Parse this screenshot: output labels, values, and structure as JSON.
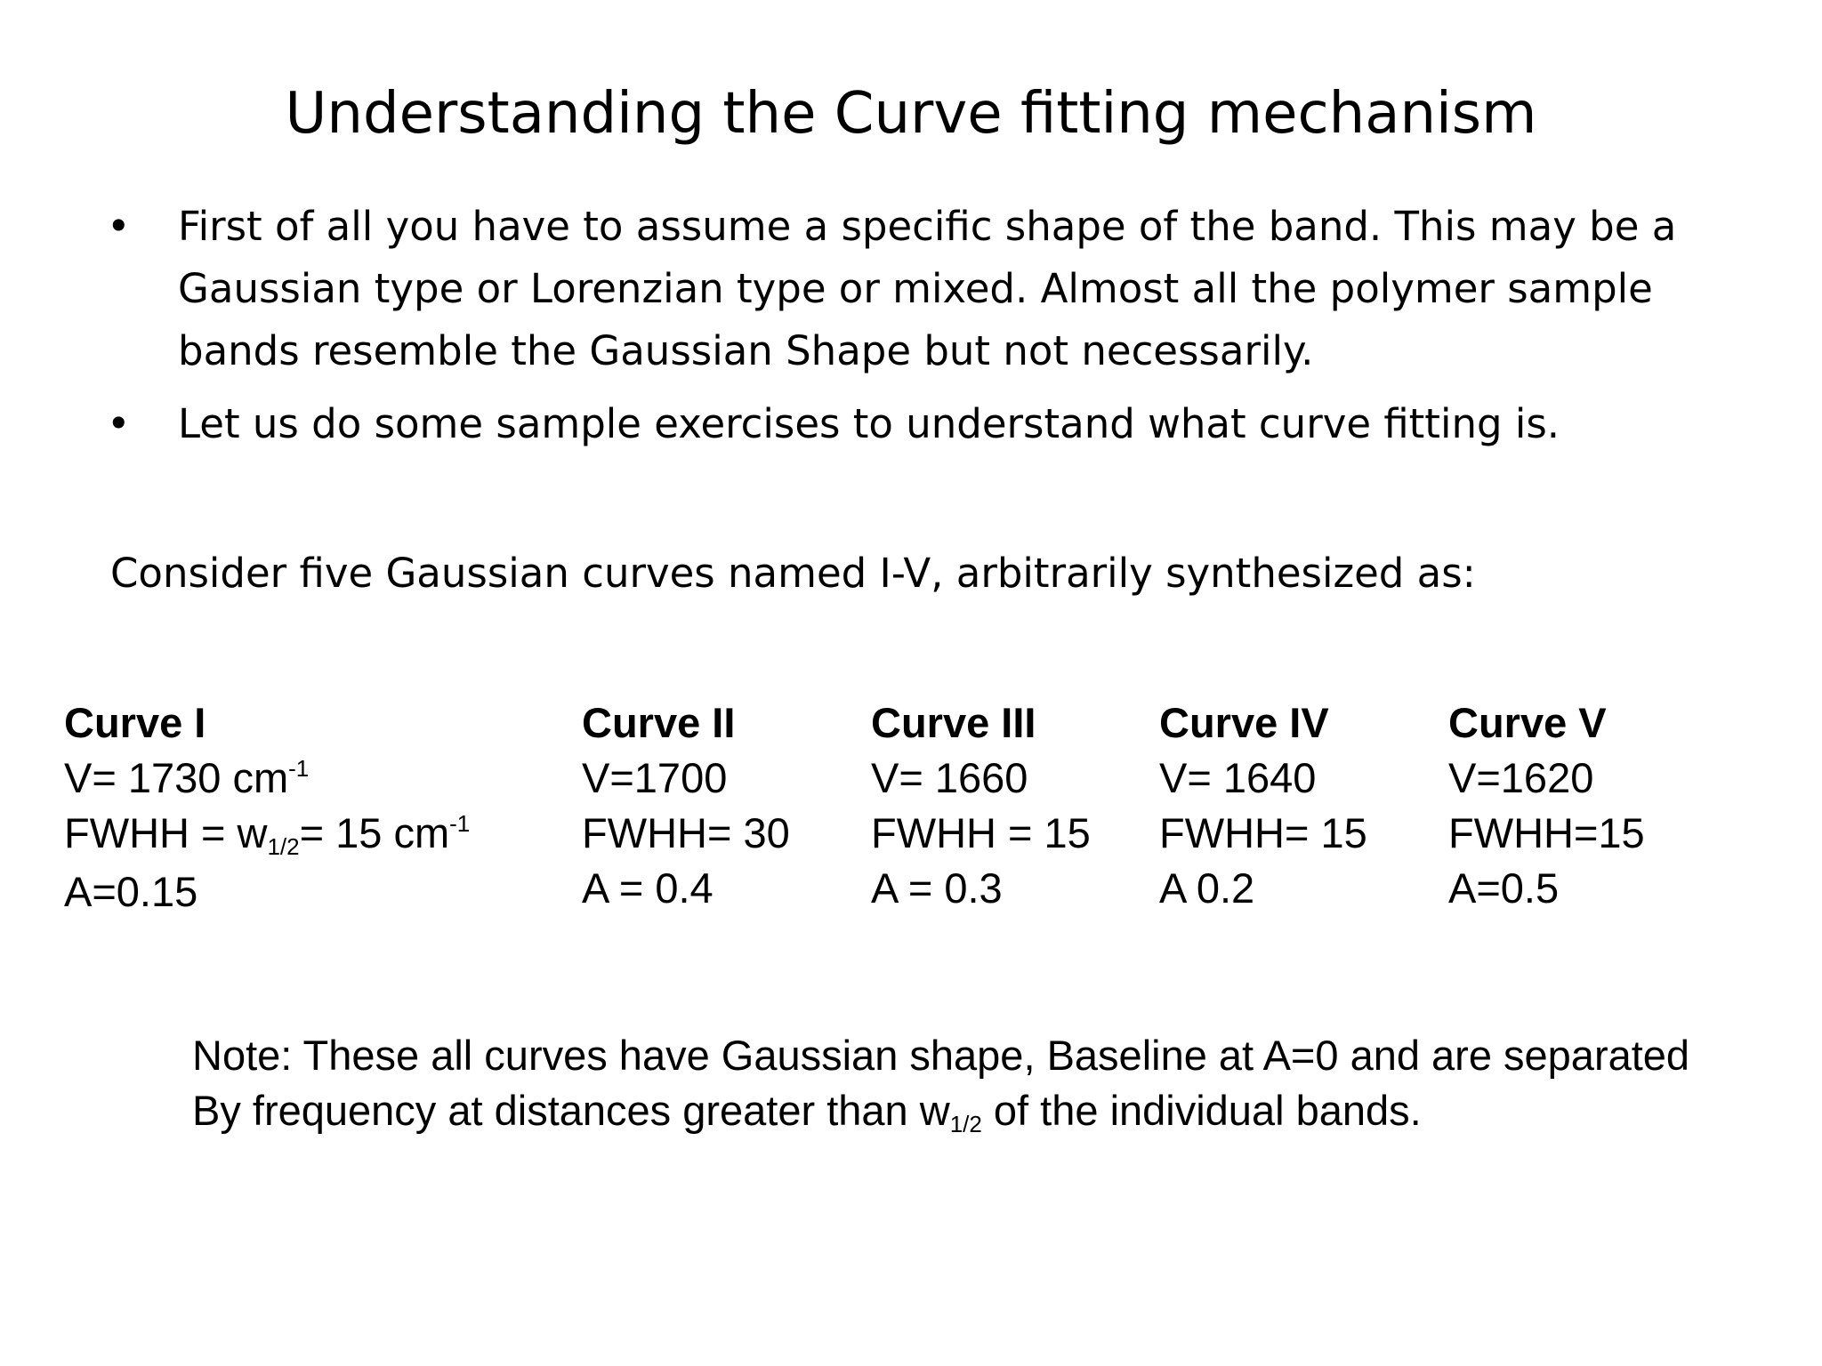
{
  "slide": {
    "title": "Understanding the Curve fitting mechanism",
    "bullets": [
      "First of all you have to assume a specific shape of the band. This may be a Gaussian type or Lorenzian type or mixed. Almost all the polymer sample bands resemble the Gaussian Shape but not necessarily.",
      "Let us do some sample exercises to understand what curve fitting is."
    ],
    "bullet_symbol": "•",
    "intro": "Consider five Gaussian curves named I-V, arbitrarily synthesized as:"
  },
  "curves": [
    {
      "name": "Curve I",
      "v_prefix": "V= 1730 cm",
      "v_sup": "-1",
      "fwhh_prefix": "FWHH = w",
      "fwhh_sub": "1/2",
      "fwhh_mid": "= 15 cm",
      "fwhh_sup": "-1",
      "a": "A=0.15"
    },
    {
      "name": "Curve II",
      "v": "V=1700",
      "fwhh": "FWHH= 30",
      "a": "A = 0.4"
    },
    {
      "name": "Curve III",
      "v": "V= 1660",
      "fwhh": "FWHH = 15",
      "a": "A = 0.3"
    },
    {
      "name": "Curve IV",
      "v": "V= 1640",
      "fwhh": "FWHH= 15",
      "a": "A  0.2"
    },
    {
      "name": "Curve V",
      "v": "V=1620",
      "fwhh": "FWHH=15",
      "a": "A=0.5"
    }
  ],
  "note": {
    "line1": "Note: These all curves have Gaussian shape, Baseline at A=0 and are separated",
    "line2_prefix": "By frequency at distances greater than w",
    "line2_sub": "1/2",
    "line2_suffix": " of the individual bands."
  }
}
